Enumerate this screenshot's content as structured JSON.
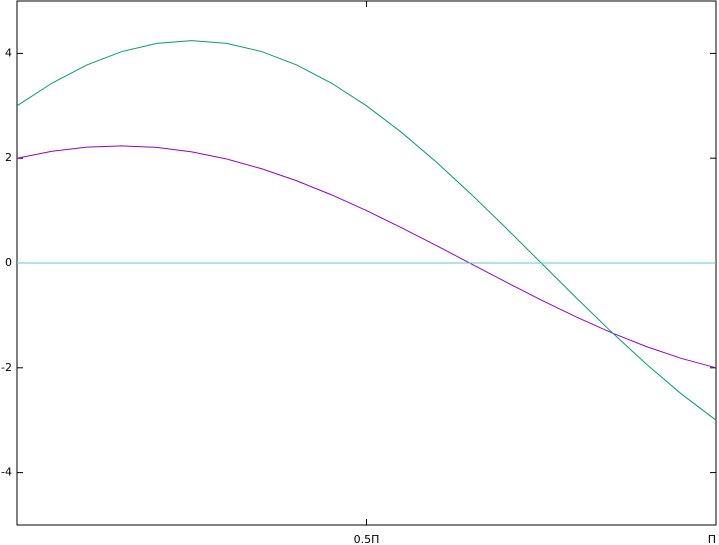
{
  "chart_data": {
    "type": "line",
    "x": [
      0,
      0.05,
      0.1,
      0.15,
      0.2,
      0.25,
      0.3,
      0.35,
      0.4,
      0.45,
      0.5,
      0.55,
      0.6,
      0.65,
      0.7,
      0.75,
      0.8,
      0.85,
      0.9,
      0.95,
      1
    ],
    "series": [
      {
        "color": "#9400d3",
        "values": [
          2,
          2.1318,
          2.2111,
          2.236,
          2.2058,
          2.1213,
          1.9846,
          1.799,
          1.5691,
          1.3005,
          1,
          0.6748,
          0.333,
          -0.017,
          -0.3666,
          -0.7071,
          -1.0302,
          -1.328,
          -1.5931,
          -1.819,
          -2
        ]
      },
      {
        "color": "#009e73",
        "values": [
          3,
          3.4324,
          3.7802,
          4.035,
          4.1904,
          4.2426,
          4.1904,
          4.035,
          3.7802,
          3.4324,
          3,
          2.4938,
          1.9261,
          1.3106,
          0.6637,
          0,
          -0.6637,
          -1.3106,
          -1.9261,
          -2.4938,
          -3
        ]
      },
      {
        "color": "#56c8d8",
        "values": [
          0,
          0,
          0,
          0,
          0,
          0,
          0,
          0,
          0,
          0,
          0,
          0,
          0,
          0,
          0,
          0,
          0,
          0,
          0,
          0,
          0
        ]
      }
    ],
    "xlim": [
      0,
      1
    ],
    "xticks": [
      {
        "value": 0.5,
        "label": "0.5Π"
      },
      {
        "value": 1,
        "label": "Π"
      }
    ],
    "ylim": [
      -5,
      5
    ],
    "yticks": [
      -4,
      -2,
      0,
      2,
      4
    ],
    "grid": false
  }
}
